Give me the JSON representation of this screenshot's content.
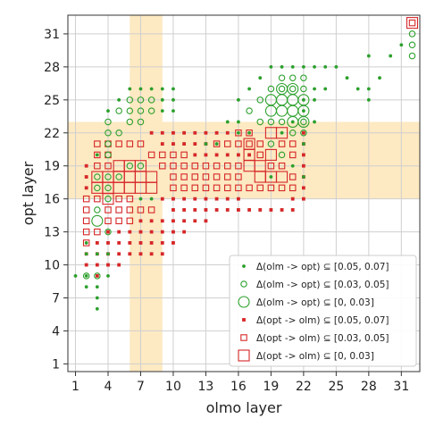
{
  "chart_data": {
    "type": "scatter",
    "xlabel": "olmo layer",
    "ylabel": "opt layer",
    "xlim": [
      0.3,
      32.7
    ],
    "ylim": [
      0.3,
      32.7
    ],
    "x_ticks": [
      1,
      4,
      7,
      10,
      13,
      16,
      19,
      22,
      25,
      28,
      31
    ],
    "y_ticks": [
      1,
      4,
      7,
      10,
      13,
      16,
      19,
      22,
      25,
      28,
      31
    ],
    "grid": true,
    "legend_position": "lower-right",
    "colors": {
      "olm_to_opt": "#2ca02c",
      "opt_to_olm": "#d62728",
      "highlight": "#fde9c2"
    },
    "highlight_bands": {
      "x_range": [
        6,
        9
      ],
      "y_range": [
        16,
        23
      ]
    },
    "series": [
      {
        "name": "Δ(olm -> opt) ⊆ [0.05, 0.07]",
        "marker": "circle",
        "size": "small",
        "color": "#2ca02c",
        "points": [
          [
            1,
            9
          ],
          [
            2,
            12
          ],
          [
            2,
            11
          ],
          [
            2,
            9
          ],
          [
            2,
            8
          ],
          [
            3,
            11
          ],
          [
            3,
            8
          ],
          [
            3,
            7
          ],
          [
            3,
            6
          ],
          [
            4,
            9
          ],
          [
            4,
            11
          ],
          [
            3,
            20
          ],
          [
            4,
            24
          ],
          [
            5,
            25
          ],
          [
            6,
            26
          ],
          [
            7,
            26
          ],
          [
            8,
            26
          ],
          [
            9,
            26
          ],
          [
            10,
            26
          ],
          [
            9,
            25
          ],
          [
            10,
            25
          ],
          [
            9,
            24
          ],
          [
            10,
            24
          ],
          [
            7,
            16
          ],
          [
            8,
            16
          ],
          [
            13,
            21
          ],
          [
            14,
            21
          ],
          [
            16,
            25
          ],
          [
            17,
            26
          ],
          [
            18,
            27
          ],
          [
            19,
            28
          ],
          [
            20,
            28
          ],
          [
            21,
            28
          ],
          [
            22,
            28
          ],
          [
            23,
            28
          ],
          [
            24,
            28
          ],
          [
            25,
            28
          ],
          [
            26,
            27
          ],
          [
            27,
            26
          ],
          [
            28,
            26
          ],
          [
            28,
            25
          ],
          [
            28,
            29
          ],
          [
            29,
            27
          ],
          [
            30,
            29
          ],
          [
            31,
            30
          ],
          [
            15,
            23
          ],
          [
            16,
            23
          ],
          [
            17,
            22
          ],
          [
            22,
            25
          ],
          [
            23,
            25
          ],
          [
            22,
            24
          ],
          [
            23,
            26
          ],
          [
            24,
            26
          ],
          [
            23,
            23
          ],
          [
            22,
            21
          ],
          [
            20,
            22
          ],
          [
            21,
            23
          ],
          [
            16,
            22
          ],
          [
            19,
            18
          ],
          [
            21,
            19
          ],
          [
            22,
            18
          ]
        ]
      },
      {
        "name": "Δ(olm -> opt) ⊆ [0.03, 0.05]",
        "marker": "circle",
        "size": "medium",
        "color": "#2ca02c",
        "points": [
          [
            2,
            9
          ],
          [
            3,
            9
          ],
          [
            3,
            15
          ],
          [
            3,
            17
          ],
          [
            3,
            18
          ],
          [
            4,
            13
          ],
          [
            4,
            16
          ],
          [
            4,
            17
          ],
          [
            4,
            18
          ],
          [
            4,
            20
          ],
          [
            4,
            21
          ],
          [
            4,
            22
          ],
          [
            4,
            23
          ],
          [
            5,
            24
          ],
          [
            6,
            24
          ],
          [
            6,
            25
          ],
          [
            7,
            25
          ],
          [
            7,
            24
          ],
          [
            8,
            24
          ],
          [
            8,
            25
          ],
          [
            5,
            22
          ],
          [
            6,
            23
          ],
          [
            7,
            23
          ],
          [
            5,
            18
          ],
          [
            6,
            19
          ],
          [
            7,
            19
          ],
          [
            17,
            24
          ],
          [
            18,
            25
          ],
          [
            19,
            26
          ],
          [
            20,
            26
          ],
          [
            21,
            26
          ],
          [
            22,
            26
          ],
          [
            20,
            27
          ],
          [
            21,
            27
          ],
          [
            22,
            27
          ],
          [
            22,
            23
          ],
          [
            22,
            22
          ],
          [
            21,
            22
          ],
          [
            19,
            21
          ],
          [
            20,
            20
          ],
          [
            32,
            31
          ],
          [
            32,
            30
          ],
          [
            32,
            29
          ],
          [
            18,
            23
          ],
          [
            19,
            23
          ],
          [
            20,
            23
          ]
        ]
      },
      {
        "name": "Δ(olm -> opt) ⊆ [0, 0.03]",
        "marker": "circle",
        "size": "large",
        "color": "#2ca02c",
        "points": [
          [
            3,
            14
          ],
          [
            19,
            25
          ],
          [
            20,
            25
          ],
          [
            21,
            25
          ],
          [
            22,
            25
          ],
          [
            19,
            24
          ],
          [
            20,
            24
          ],
          [
            21,
            24
          ],
          [
            22,
            24
          ],
          [
            20,
            26
          ],
          [
            21,
            26
          ],
          [
            21,
            23
          ],
          [
            22,
            23
          ]
        ]
      },
      {
        "name": "Δ(opt -> olm) ⊆ [0.05, 0.07]",
        "marker": "square",
        "size": "small",
        "color": "#d62728",
        "points": [
          [
            2,
            19
          ],
          [
            2,
            18
          ],
          [
            2,
            17
          ],
          [
            2,
            11
          ],
          [
            2,
            10
          ],
          [
            3,
            10
          ],
          [
            3,
            9
          ],
          [
            3,
            11
          ],
          [
            3,
            12
          ],
          [
            4,
            12
          ],
          [
            4,
            11
          ],
          [
            5,
            11
          ],
          [
            5,
            12
          ],
          [
            5,
            13
          ],
          [
            6,
            11
          ],
          [
            6,
            12
          ],
          [
            7,
            11
          ],
          [
            7,
            12
          ],
          [
            8,
            11
          ],
          [
            8,
            12
          ],
          [
            9,
            11
          ],
          [
            9,
            12
          ],
          [
            10,
            12
          ],
          [
            10,
            13
          ],
          [
            11,
            13
          ],
          [
            11,
            14
          ],
          [
            12,
            14
          ],
          [
            13,
            14
          ],
          [
            14,
            15
          ],
          [
            8,
            22
          ],
          [
            9,
            22
          ],
          [
            10,
            22
          ],
          [
            11,
            22
          ],
          [
            12,
            22
          ],
          [
            13,
            22
          ],
          [
            14,
            22
          ],
          [
            15,
            22
          ],
          [
            9,
            21
          ],
          [
            10,
            21
          ],
          [
            11,
            21
          ],
          [
            12,
            21
          ],
          [
            13,
            21
          ],
          [
            12,
            20
          ],
          [
            13,
            20
          ],
          [
            14,
            20
          ],
          [
            15,
            20
          ],
          [
            16,
            20
          ],
          [
            17,
            20
          ],
          [
            21,
            15
          ],
          [
            21,
            16
          ],
          [
            22,
            16
          ],
          [
            20,
            15
          ],
          [
            19,
            15
          ],
          [
            18,
            15
          ],
          [
            17,
            15
          ],
          [
            16,
            15
          ],
          [
            15,
            15
          ],
          [
            16,
            16
          ],
          [
            15,
            16
          ],
          [
            14,
            16
          ],
          [
            13,
            16
          ],
          [
            12,
            16
          ],
          [
            11,
            16
          ],
          [
            10,
            16
          ],
          [
            9,
            16
          ],
          [
            22,
            17
          ],
          [
            22,
            18
          ],
          [
            22,
            19
          ],
          [
            22,
            20
          ],
          [
            22,
            21
          ],
          [
            22,
            22
          ],
          [
            4,
            10
          ],
          [
            4,
            13
          ],
          [
            5,
            10
          ],
          [
            6,
            13
          ],
          [
            7,
            13
          ],
          [
            8,
            13
          ],
          [
            9,
            13
          ],
          [
            7,
            14
          ],
          [
            8,
            14
          ],
          [
            9,
            14
          ],
          [
            10,
            14
          ],
          [
            10,
            15
          ],
          [
            11,
            15
          ],
          [
            12,
            15
          ],
          [
            13,
            15
          ]
        ]
      },
      {
        "name": "Δ(opt -> olm) ⊆ [0.03, 0.05]",
        "marker": "square",
        "size": "medium",
        "color": "#d62728",
        "points": [
          [
            2,
            16
          ],
          [
            2,
            15
          ],
          [
            2,
            14
          ],
          [
            2,
            13
          ],
          [
            2,
            12
          ],
          [
            3,
            13
          ],
          [
            3,
            16
          ],
          [
            3,
            19
          ],
          [
            4,
            19
          ],
          [
            4,
            15
          ],
          [
            4,
            14
          ],
          [
            5,
            14
          ],
          [
            5,
            15
          ],
          [
            5,
            16
          ],
          [
            6,
            15
          ],
          [
            6,
            16
          ],
          [
            6,
            14
          ],
          [
            7,
            15
          ],
          [
            8,
            15
          ],
          [
            5,
            21
          ],
          [
            6,
            21
          ],
          [
            7,
            21
          ],
          [
            8,
            20
          ],
          [
            9,
            20
          ],
          [
            10,
            20
          ],
          [
            11,
            20
          ],
          [
            9,
            19
          ],
          [
            10,
            19
          ],
          [
            11,
            19
          ],
          [
            12,
            19
          ],
          [
            13,
            19
          ],
          [
            14,
            19
          ],
          [
            15,
            19
          ],
          [
            14,
            18
          ],
          [
            15,
            18
          ],
          [
            16,
            18
          ],
          [
            14,
            17
          ],
          [
            15,
            17
          ],
          [
            16,
            17
          ],
          [
            17,
            17
          ],
          [
            13,
            17
          ],
          [
            12,
            17
          ],
          [
            11,
            17
          ],
          [
            10,
            17
          ],
          [
            10,
            18
          ],
          [
            11,
            18
          ],
          [
            12,
            18
          ],
          [
            13,
            18
          ],
          [
            16,
            21
          ],
          [
            17,
            21
          ],
          [
            18,
            21
          ],
          [
            18,
            20
          ],
          [
            21,
            17
          ],
          [
            21,
            18
          ],
          [
            20,
            17
          ],
          [
            20,
            19
          ],
          [
            21,
            20
          ],
          [
            21,
            21
          ],
          [
            20,
            21
          ],
          [
            17,
            22
          ],
          [
            16,
            22
          ],
          [
            15,
            21
          ],
          [
            14,
            21
          ],
          [
            16,
            19
          ],
          [
            19,
            19
          ],
          [
            19,
            17
          ],
          [
            18,
            17
          ],
          [
            4,
            20
          ],
          [
            3,
            20
          ],
          [
            3,
            21
          ],
          [
            4,
            21
          ],
          [
            32,
            32
          ]
        ]
      },
      {
        "name": "Δ(opt -> olm) ⊆ [0, 0.03]",
        "marker": "square",
        "size": "large",
        "color": "#d62728",
        "points": [
          [
            3,
            17
          ],
          [
            3,
            18
          ],
          [
            4,
            16
          ],
          [
            4,
            17
          ],
          [
            4,
            18
          ],
          [
            5,
            17
          ],
          [
            5,
            18
          ],
          [
            5,
            19
          ],
          [
            6,
            17
          ],
          [
            6,
            18
          ],
          [
            6,
            19
          ],
          [
            7,
            17
          ],
          [
            7,
            18
          ],
          [
            7,
            19
          ],
          [
            8,
            17
          ],
          [
            8,
            18
          ],
          [
            17,
            21
          ],
          [
            18,
            18
          ],
          [
            18,
            19
          ],
          [
            19,
            18
          ],
          [
            19,
            20
          ],
          [
            20,
            18
          ],
          [
            17,
            20
          ],
          [
            17,
            19
          ],
          [
            19,
            22
          ],
          [
            20,
            22
          ],
          [
            32,
            32
          ]
        ]
      }
    ]
  }
}
